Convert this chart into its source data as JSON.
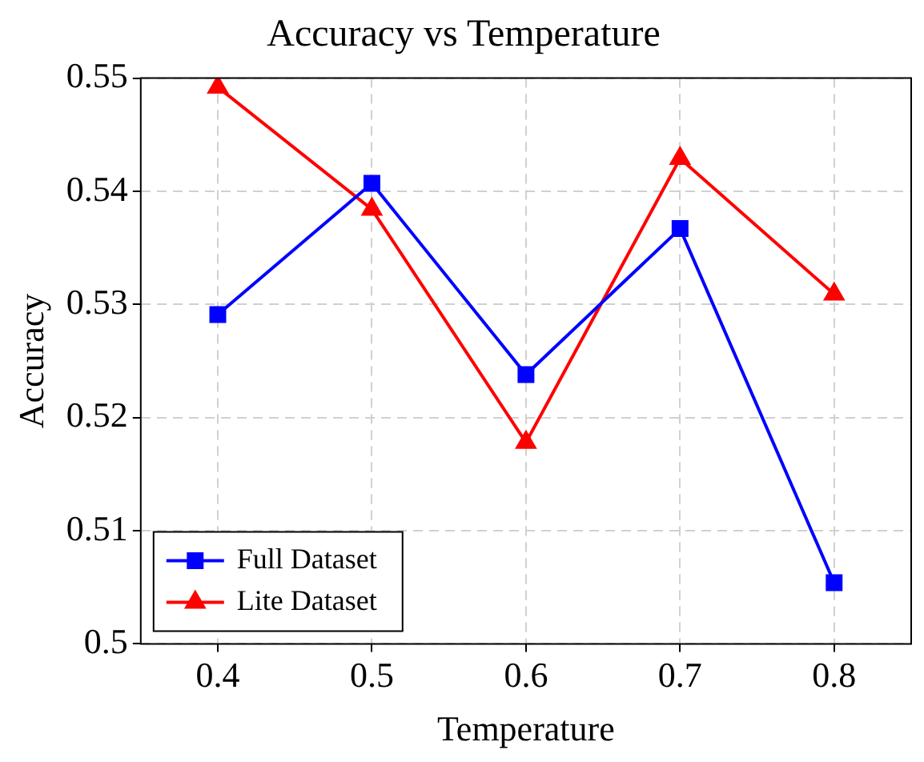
{
  "chart_data": {
    "type": "line",
    "title": "Accuracy vs Temperature",
    "xlabel": "Temperature",
    "ylabel": "Accuracy",
    "x": [
      0.4,
      0.5,
      0.6,
      0.7,
      0.8
    ],
    "xlim": [
      0.35,
      0.85
    ],
    "xticks": [
      0.4,
      0.5,
      0.6,
      0.7,
      0.8
    ],
    "ylim": [
      0.5,
      0.55
    ],
    "yticks": [
      0.5,
      0.51,
      0.52,
      0.53,
      0.54,
      0.55
    ],
    "grid": true,
    "legend": "bottom left",
    "line_style": "solid",
    "series": [
      {
        "name": "Full Dataset",
        "color": "#0000ff",
        "marker": "square",
        "values": [
          0.5291,
          0.5407,
          0.5238,
          0.5367,
          0.5054
        ]
      },
      {
        "name": "Lite Dataset",
        "color": "#ff0000",
        "marker": "triangle",
        "values": [
          0.5492,
          0.5384,
          0.5178,
          0.5429,
          0.5309
        ]
      }
    ]
  }
}
